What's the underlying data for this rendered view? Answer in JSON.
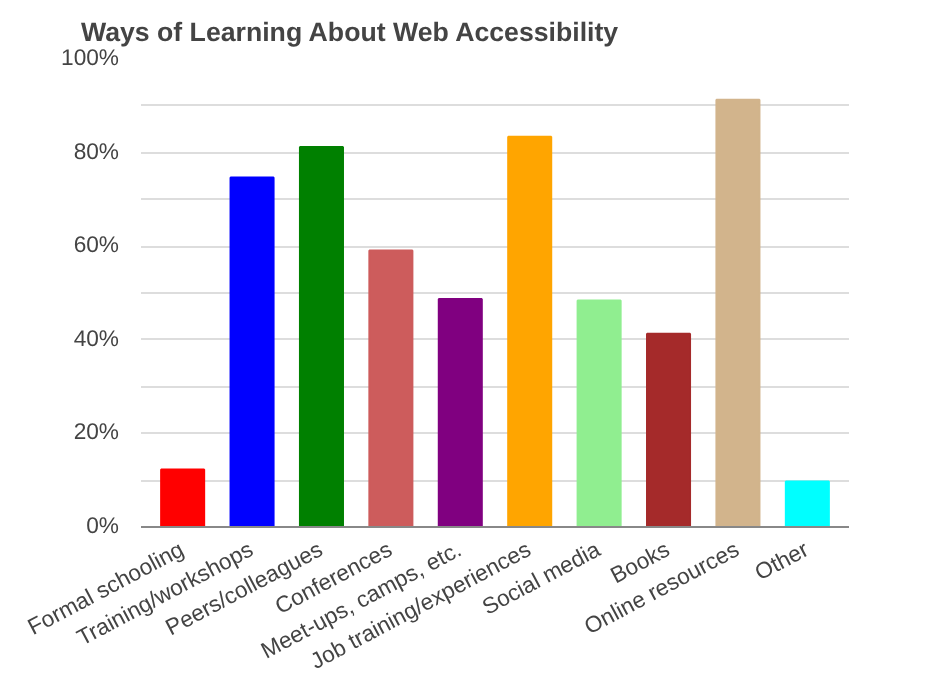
{
  "chart_data": {
    "type": "bar",
    "title": "Ways of Learning About Web Accessibility",
    "categories": [
      "Formal schooling",
      "Training/workshops",
      "Peers/colleagues",
      "Conferences",
      "Meet-ups, camps, etc.",
      "Job training/experiences",
      "Social media",
      "Books",
      "Online resources",
      "Other"
    ],
    "values": [
      12.3,
      74.7,
      81.2,
      59.1,
      48.7,
      83.4,
      48.4,
      41.3,
      91.3,
      9.7
    ],
    "colors": [
      "#ff0000",
      "#0000ff",
      "#008000",
      "#cd5c5c",
      "#800080",
      "#ffa500",
      "#90ee90",
      "#a52a2a",
      "#d2b48c",
      "#00ffff"
    ],
    "ylim": [
      0,
      100
    ],
    "yticks": [
      {
        "value": 0,
        "label": "0%"
      },
      {
        "value": 10,
        "label": null
      },
      {
        "value": 20,
        "label": "20%"
      },
      {
        "value": 30,
        "label": null
      },
      {
        "value": 40,
        "label": "40%"
      },
      {
        "value": 50,
        "label": null
      },
      {
        "value": 60,
        "label": "60%"
      },
      {
        "value": 70,
        "label": null
      },
      {
        "value": 80,
        "label": "80%"
      },
      {
        "value": 90,
        "label": null
      },
      {
        "value": 100,
        "label": "100%"
      }
    ],
    "grid": "y"
  }
}
